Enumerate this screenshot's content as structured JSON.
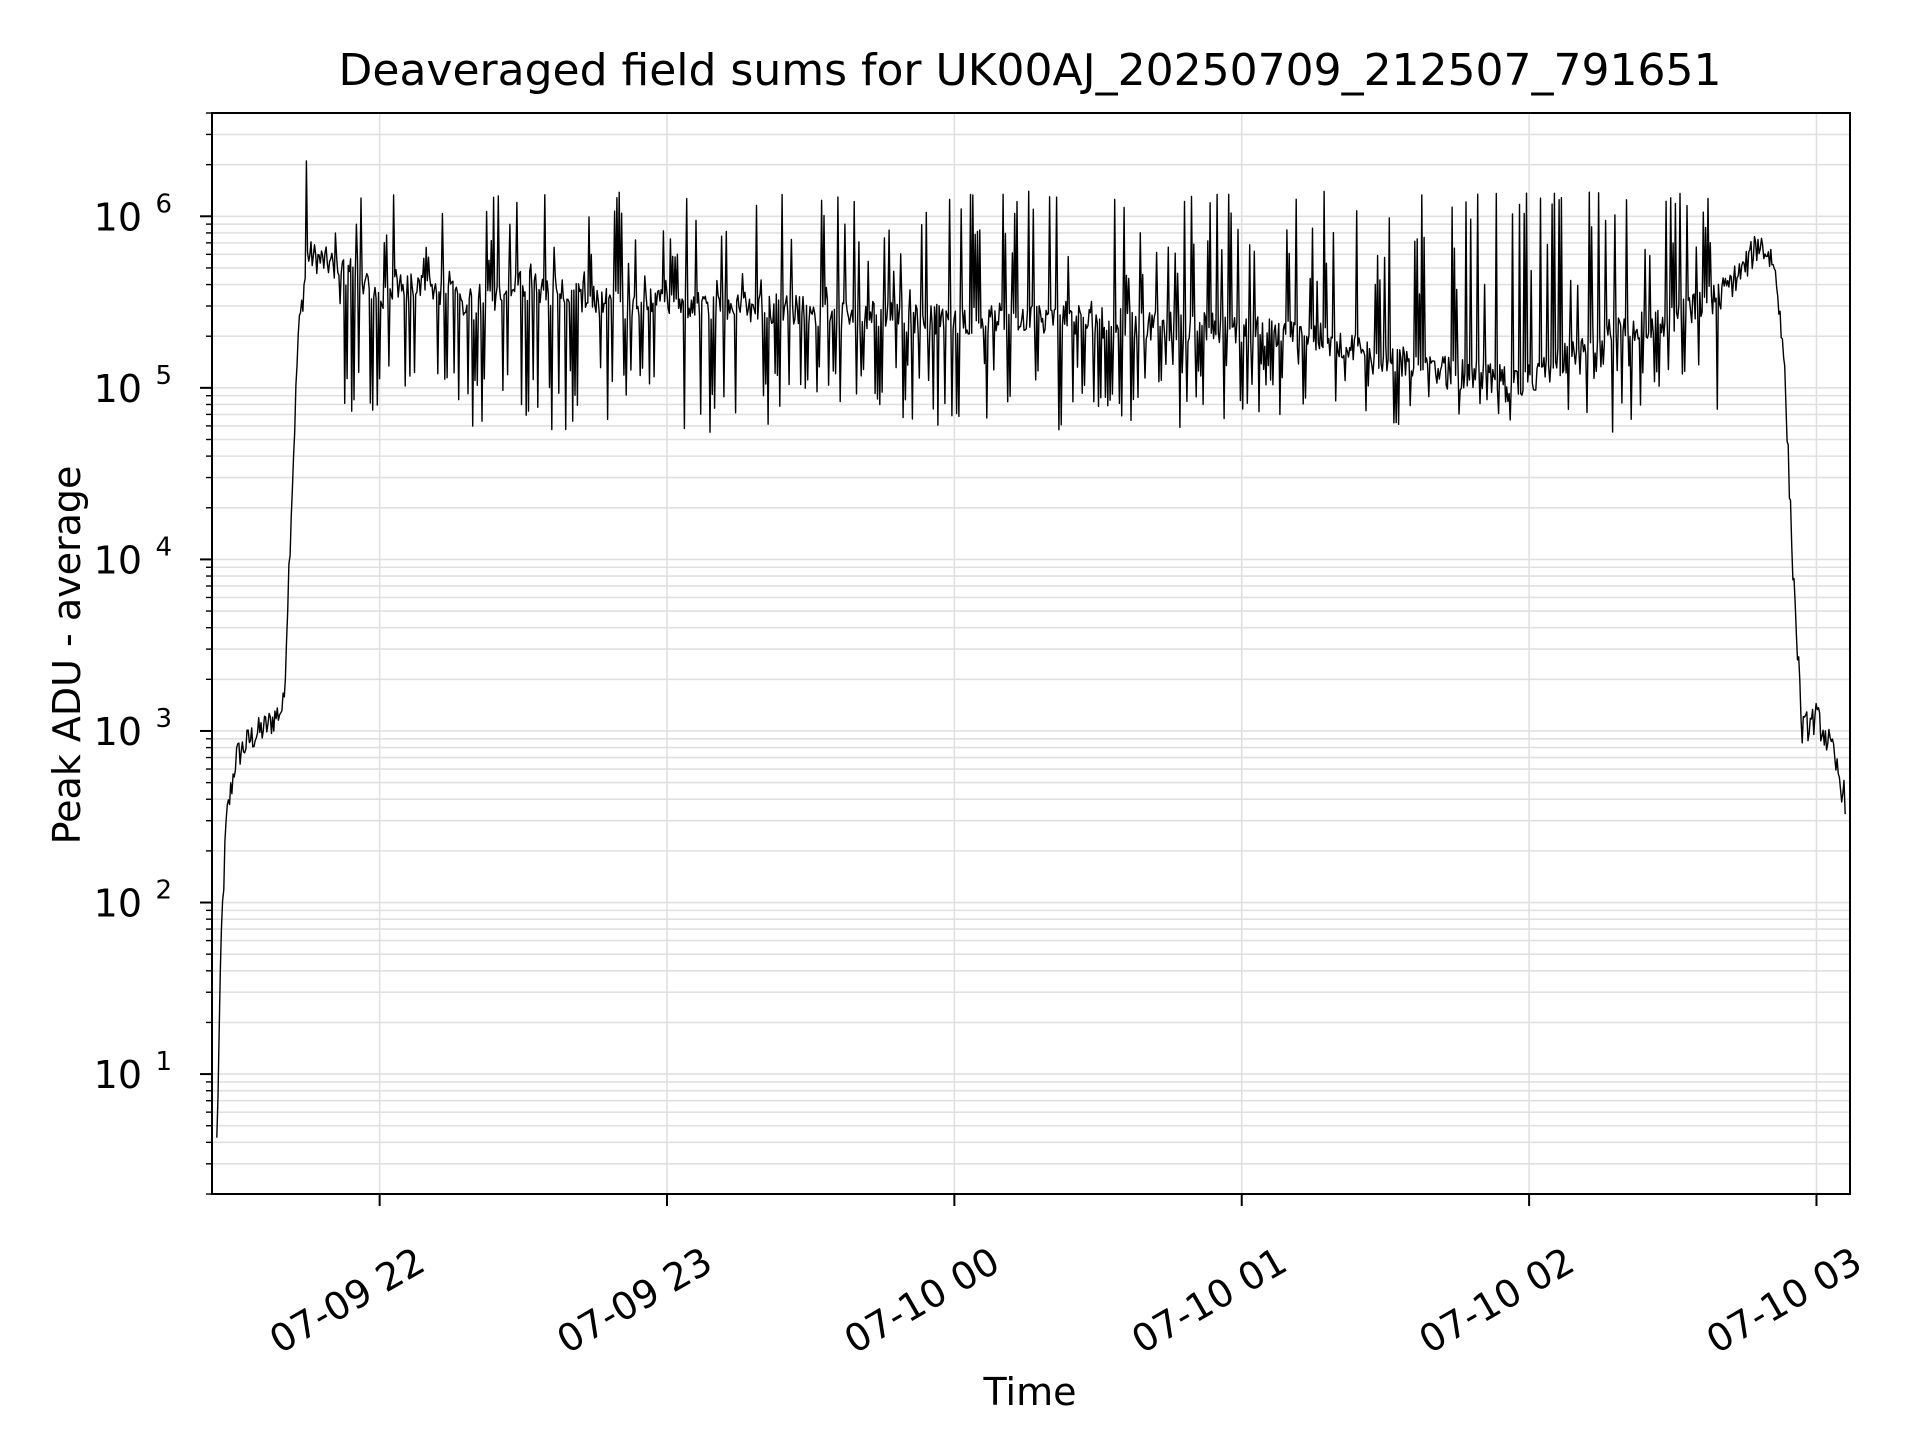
{
  "chart_data": {
    "type": "line",
    "title": "Deaveraged field sums for UK00AJ_20250709_212507_791651",
    "xlabel": "Time",
    "ylabel": "Peak ADU - average",
    "yscale": "log",
    "grid": true,
    "line_color": "#000000",
    "grid_color": "#e0e0e0",
    "xlim": [
      "2025-07-09 21:25",
      "2025-07-10 03:07"
    ],
    "ylim": [
      2,
      4000000
    ],
    "x_ticks": [
      {
        "value": "2025-07-09 22:00",
        "label": "07-09 22"
      },
      {
        "value": "2025-07-09 23:00",
        "label": "07-09 23"
      },
      {
        "value": "2025-07-10 00:00",
        "label": "07-10 00"
      },
      {
        "value": "2025-07-10 01:00",
        "label": "07-10 01"
      },
      {
        "value": "2025-07-10 02:00",
        "label": "07-10 02"
      },
      {
        "value": "2025-07-10 03:00",
        "label": "07-10 03"
      }
    ],
    "y_ticks": [
      {
        "value": 10,
        "base": "10",
        "exp": "1"
      },
      {
        "value": 100,
        "base": "10",
        "exp": "2"
      },
      {
        "value": 1000,
        "base": "10",
        "exp": "3"
      },
      {
        "value": 10000,
        "base": "10",
        "exp": "4"
      },
      {
        "value": 100000,
        "base": "10",
        "exp": "5"
      },
      {
        "value": 1000000,
        "base": "10",
        "exp": "6"
      }
    ],
    "series": [
      {
        "x": [
          "2025-07-09 21:26",
          "2025-07-09 21:27",
          "2025-07-09 21:28",
          "2025-07-09 21:30",
          "2025-07-09 21:33",
          "2025-07-09 21:37",
          "2025-07-09 21:40",
          "2025-07-09 21:41",
          "2025-07-09 21:43",
          "2025-07-09 21:45",
          "2025-07-09 21:48",
          "2025-07-09 21:52",
          "2025-07-09 21:56",
          "2025-07-09 22:00",
          "2025-07-09 22:10",
          "2025-07-09 22:20",
          "2025-07-09 22:30",
          "2025-07-09 22:40",
          "2025-07-09 22:50",
          "2025-07-09 23:00",
          "2025-07-09 23:15",
          "2025-07-09 23:30",
          "2025-07-09 23:45",
          "2025-07-10 00:00",
          "2025-07-10 00:15",
          "2025-07-10 00:30",
          "2025-07-10 00:45",
          "2025-07-10 01:00",
          "2025-07-10 01:15",
          "2025-07-10 01:30",
          "2025-07-10 01:45",
          "2025-07-10 02:00",
          "2025-07-10 02:15",
          "2025-07-10 02:30",
          "2025-07-10 02:40",
          "2025-07-10 02:45",
          "2025-07-10 02:48",
          "2025-07-10 02:51",
          "2025-07-10 02:53",
          "2025-07-10 02:55",
          "2025-07-10 02:57",
          "2025-07-10 03:00",
          "2025-07-10 03:03",
          "2025-07-10 03:06"
        ],
        "values": [
          4,
          70,
          300,
          700,
          900,
          1100,
          1400,
          8000,
          200000,
          600000,
          550000,
          500000,
          450000,
          350000,
          400000,
          300000,
          400000,
          350000,
          300000,
          320000,
          300000,
          280000,
          260000,
          250000,
          260000,
          240000,
          230000,
          220000,
          200000,
          150000,
          120000,
          110000,
          200000,
          250000,
          350000,
          500000,
          700000,
          550000,
          200000,
          10000,
          1000,
          1200,
          800,
          400
        ]
      }
    ],
    "spikes": {
      "count": 330,
      "low": [
        55000,
        140000
      ],
      "high": [
        300000,
        1400000
      ],
      "max": 2100000
    }
  }
}
